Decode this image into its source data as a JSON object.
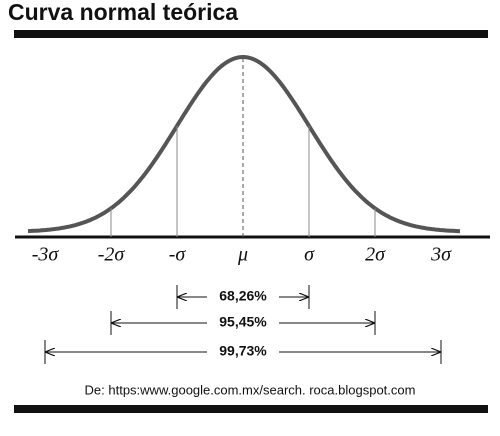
{
  "header": {
    "title": "Curva normal teórica"
  },
  "axis_labels": [
    "-3σ",
    "-2σ",
    "-σ",
    "μ",
    "σ",
    "2σ",
    "3σ"
  ],
  "ranges": [
    "68,26%",
    "95,45%",
    "99,73%"
  ],
  "source": "De: https:www.google.com.mx/search. roca.blogspot.com"
}
